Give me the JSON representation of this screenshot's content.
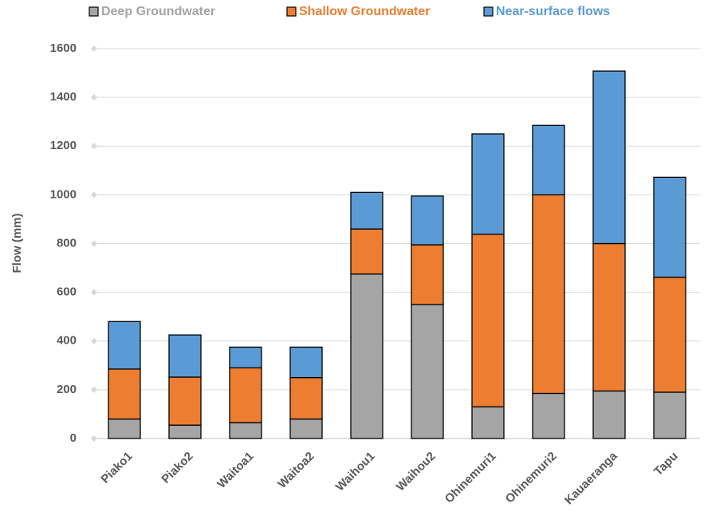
{
  "chart_data": {
    "type": "stacked_bar",
    "y_label": "Flow (mm)",
    "categories": [
      "Piako1",
      "Piako2",
      "Waitoa1",
      "Waitoa2",
      "Waihou1",
      "Waihou2",
      "Ohinemuri1",
      "Ohinemuri2",
      "Kauaeranga",
      "Tapu"
    ],
    "series": [
      {
        "name": "Deep Groundwater",
        "color": "#a5a5a5",
        "values": [
          80,
          55,
          65,
          80,
          675,
          550,
          130,
          185,
          195,
          190
        ]
      },
      {
        "name": "Shallow Groundwater",
        "color": "#ed7d31",
        "values": [
          205,
          197,
          225,
          170,
          185,
          245,
          708,
          815,
          605,
          472
        ]
      },
      {
        "name": "Near-surface flows",
        "color": "#5b9bd5",
        "values": [
          195,
          173,
          85,
          125,
          150,
          200,
          412,
          285,
          708,
          410
        ]
      }
    ],
    "ylim": [
      0,
      1600
    ],
    "yticks": [
      0,
      200,
      400,
      600,
      800,
      1000,
      1200,
      1400,
      1600
    ],
    "grid": true,
    "legend": "top"
  }
}
